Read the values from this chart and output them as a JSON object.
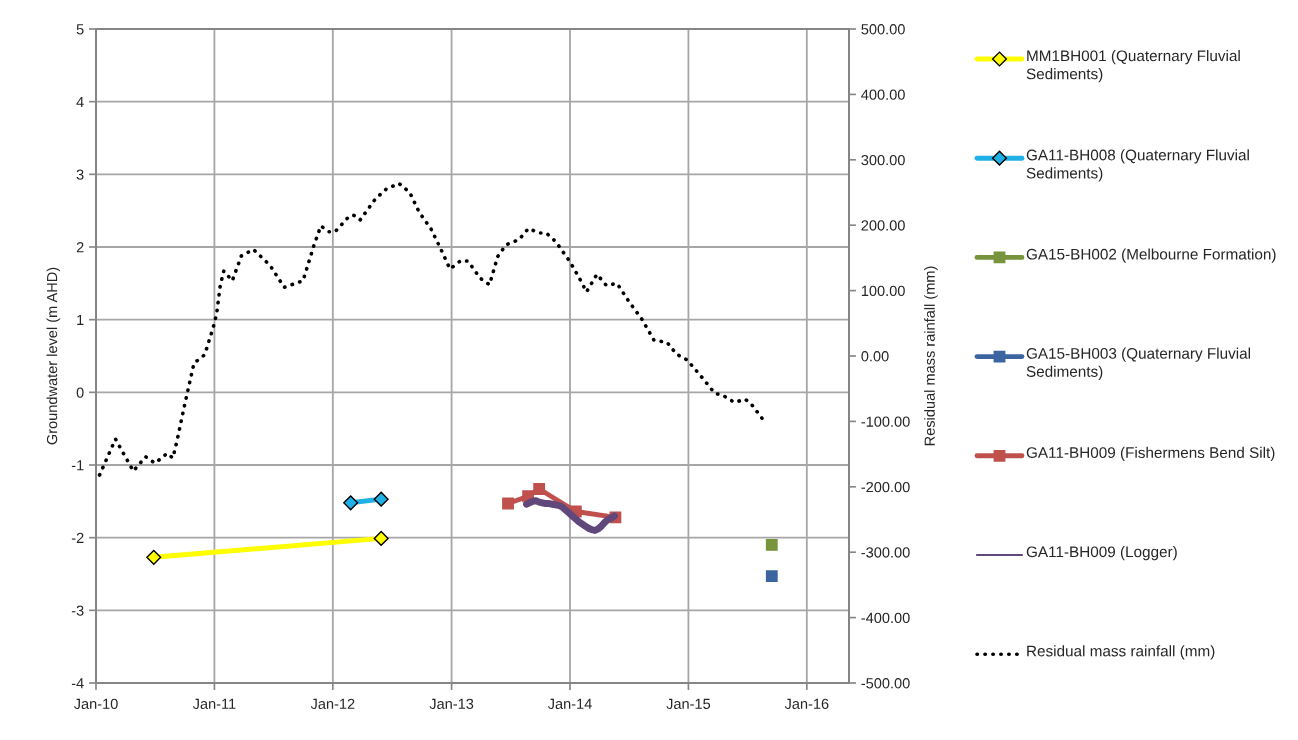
{
  "chart_data": {
    "type": "line",
    "ylabel": "Groundwater level (m AHD)",
    "y2label": "Residual mass rainfall (mm)",
    "xlim": [
      "2010-01-01",
      "2016-05-10"
    ],
    "xticks": [
      {
        "value": "2010-01-01",
        "label": "Jan-10"
      },
      {
        "value": "2011-01-01",
        "label": "Jan-11"
      },
      {
        "value": "2012-01-01",
        "label": "Jan-12"
      },
      {
        "value": "2013-01-01",
        "label": "Jan-13"
      },
      {
        "value": "2014-01-01",
        "label": "Jan-14"
      },
      {
        "value": "2015-01-01",
        "label": "Jan-15"
      },
      {
        "value": "2016-01-01",
        "label": "Jan-16"
      }
    ],
    "ylim": [
      -4,
      5
    ],
    "yticks": [
      -4,
      -3,
      -2,
      -1,
      0,
      1,
      2,
      3,
      4,
      5
    ],
    "y2lim": [
      -500,
      500
    ],
    "y2ticks": [
      {
        "value": -500,
        "label": "-500.00"
      },
      {
        "value": -400,
        "label": "-400.00"
      },
      {
        "value": -300,
        "label": "-300.00"
      },
      {
        "value": -200,
        "label": "-200.00"
      },
      {
        "value": -100,
        "label": "-100.00"
      },
      {
        "value": 0,
        "label": "0.00"
      },
      {
        "value": 100,
        "label": "100.00"
      },
      {
        "value": 200,
        "label": "200.00"
      },
      {
        "value": 300,
        "label": "300.00"
      },
      {
        "value": 400,
        "label": "400.00"
      },
      {
        "value": 500,
        "label": "500.00"
      }
    ],
    "grid": true,
    "legend": "right",
    "series": [
      {
        "name": "MM1BH001 (Quaternary Fluvial Sediments)",
        "color": "#ffff00",
        "marker": "diamond",
        "line_style": "solid",
        "x": [
          "2010-06-28",
          "2012-05-29"
        ],
        "values": [
          -2.27,
          -2.01
        ]
      },
      {
        "name": "GA11-BH008 (Quaternary Fluvial Sediments)",
        "color": "#1fb0e6",
        "marker": "diamond",
        "line_style": "solid",
        "x": [
          "2012-02-25",
          "2012-05-29"
        ],
        "values": [
          -1.52,
          -1.47
        ]
      },
      {
        "name": "GA15-BH002 (Melbourne Formation)",
        "color": "#77933c",
        "marker": "square",
        "line_style": "solid",
        "x": [
          "2015-09-15"
        ],
        "values": [
          -2.1
        ]
      },
      {
        "name": "GA15-BH003 (Quaternary Fluvial Sediments)",
        "color": "#3b64a0",
        "marker": "square",
        "line_style": "solid",
        "x": [
          "2015-09-15"
        ],
        "values": [
          -2.53
        ]
      },
      {
        "name": "GA11-BH009 (Fishermens Bend Silt)",
        "color": "#c0504d",
        "marker": "square",
        "line_style": "solid",
        "x": [
          "2013-06-24",
          "2013-08-25",
          "2013-09-28",
          "2014-01-19",
          "2014-05-21"
        ],
        "values": [
          -1.53,
          -1.43,
          -1.33,
          -1.64,
          -1.72
        ]
      },
      {
        "name": "GA11-BH009 (Logger)",
        "color": "#60497a",
        "marker": "none",
        "line_style": "solid",
        "x": [
          "2013-08-20",
          "2013-08-29",
          "2013-09-08",
          "2013-09-18",
          "2013-09-28",
          "2013-10-08",
          "2013-10-18",
          "2013-10-29",
          "2013-11-08",
          "2013-11-18",
          "2013-11-29",
          "2013-12-09",
          "2013-12-19",
          "2013-12-29",
          "2014-01-08",
          "2014-01-18",
          "2014-01-28",
          "2014-02-07",
          "2014-02-17",
          "2014-02-27",
          "2014-03-09",
          "2014-03-19",
          "2014-03-29",
          "2014-04-08",
          "2014-04-18",
          "2014-04-28",
          "2014-05-08",
          "2014-05-18"
        ],
        "values": [
          -1.54,
          -1.52,
          -1.5,
          -1.49,
          -1.51,
          -1.52,
          -1.53,
          -1.53,
          -1.54,
          -1.55,
          -1.56,
          -1.58,
          -1.62,
          -1.66,
          -1.7,
          -1.74,
          -1.78,
          -1.81,
          -1.84,
          -1.87,
          -1.89,
          -1.9,
          -1.88,
          -1.84,
          -1.79,
          -1.75,
          -1.73,
          -1.7
        ]
      },
      {
        "name": "Residual mass rainfall (mm)",
        "color": "#000000",
        "marker": "none",
        "line_style": "dotted",
        "axis": "y2",
        "x": [
          "2010-01-12",
          "2010-03-02",
          "2010-04-26",
          "2010-06-03",
          "2010-07-02",
          "2010-08-08",
          "2010-08-26",
          "2010-09-09",
          "2010-10-01",
          "2010-10-30",
          "2010-12-02",
          "2010-12-28",
          "2011-01-08",
          "2011-01-19",
          "2011-01-30",
          "2011-02-25",
          "2011-03-25",
          "2011-05-01",
          "2011-06-21",
          "2011-08-04",
          "2011-10-01",
          "2011-11-03",
          "2011-11-25",
          "2011-12-20",
          "2012-01-08",
          "2012-02-21",
          "2012-03-06",
          "2012-03-25",
          "2012-05-11",
          "2012-06-13",
          "2012-07-23",
          "2012-08-25",
          "2012-09-23",
          "2012-10-30",
          "2012-12-05",
          "2012-12-27",
          "2013-01-30",
          "2013-02-21",
          "2013-03-30",
          "2013-04-28",
          "2013-05-23",
          "2013-06-18",
          "2013-07-28",
          "2013-08-26",
          "2013-09-28",
          "2013-10-20",
          "2013-11-18",
          "2014-01-01",
          "2014-01-30",
          "2014-02-21",
          "2014-03-25",
          "2014-04-23",
          "2014-05-26",
          "2014-07-02",
          "2014-08-11",
          "2014-09-17",
          "2014-10-27",
          "2014-11-25",
          "2014-12-28",
          "2015-02-14",
          "2015-03-23",
          "2015-04-17",
          "2015-05-23",
          "2015-06-25",
          "2015-07-13",
          "2015-08-08",
          "2015-08-23"
        ],
        "values": [
          -182,
          -127,
          -176,
          -154,
          -164,
          -149,
          -156,
          -127,
          -75,
          -11,
          2,
          43,
          65,
          108,
          130,
          115,
          153,
          163,
          139,
          105,
          115,
          168,
          199,
          190,
          190,
          214,
          215,
          208,
          240,
          255,
          264,
          250,
          220,
          194,
          157,
          133,
          146,
          145,
          119,
          109,
          152,
          170,
          178,
          195,
          188,
          188,
          175,
          144,
          119,
          98,
          125,
          108,
          111,
          83,
          56,
          24,
          21,
          3,
          -6,
          -34,
          -57,
          -60,
          -71,
          -66,
          -73,
          -90,
          -100
        ]
      }
    ]
  }
}
